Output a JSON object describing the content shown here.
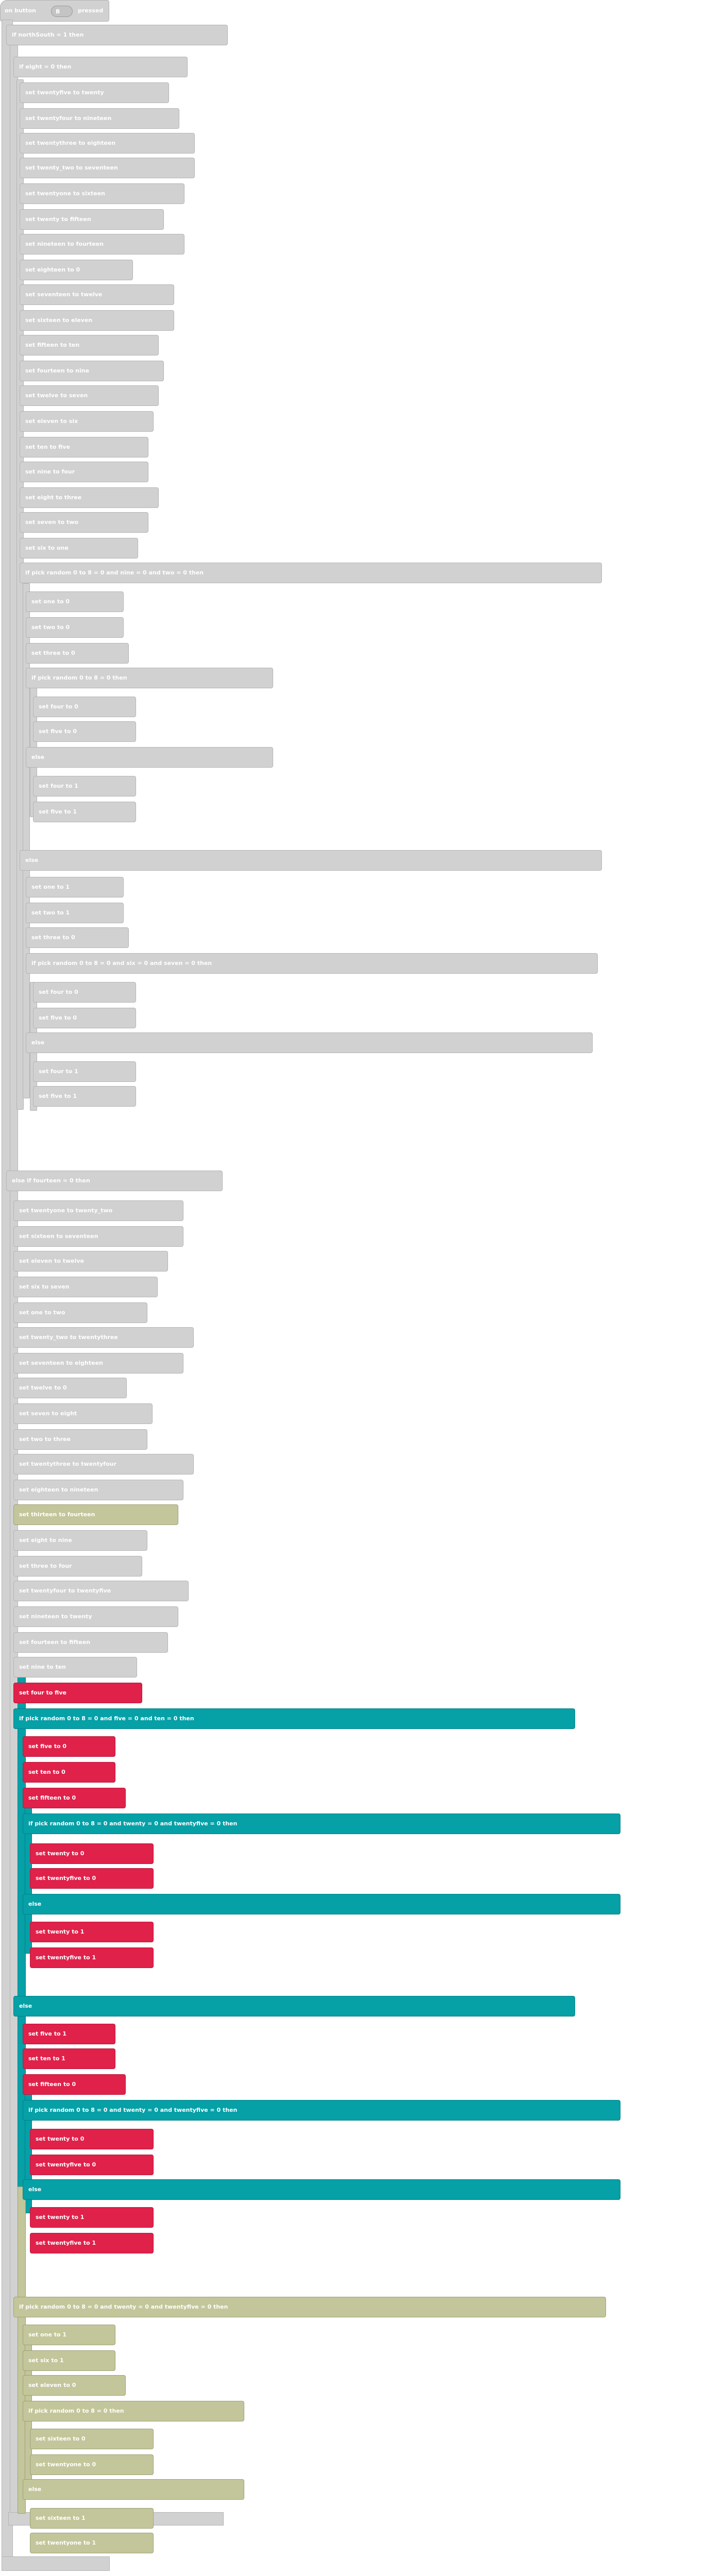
{
  "event": {
    "label": "on button",
    "button": "B",
    "action": "pressed"
  },
  "keywords": {
    "if": "if",
    "else": "else",
    "else_if": "else if",
    "then": "then",
    "set": "set",
    "to": "to",
    "and": "and",
    "pick_random": "pick random"
  },
  "blocks": [
    "if northSouth = 1 then",
    "if eight = 0 then",
    "set twentyfive to twenty",
    "set twentyfour to nineteen",
    "set twentythree to eighteen",
    "set twenty_two to seventeen",
    "set twentyone to sixteen",
    "set twenty to fifteen",
    "set nineteen to fourteen",
    "set eighteen to 0",
    "set seventeen to twelve",
    "set sixteen to eleven",
    "set fifteen to ten",
    "set fourteen to nine",
    "set twelve to seven",
    "set eleven to six",
    "set ten to five",
    "set nine to four",
    "set eight to three",
    "set seven to two",
    "set six to one",
    "if pick random 0 to 8 = 0 and nine = 0 and two = 0 then",
    "set one to 0",
    "set two to 0",
    "set three to 0",
    "if pick random 0 to 8 = 0 then",
    "set four to 0",
    "set five to 0",
    "else",
    "set four to 1",
    "set five to 1",
    "else",
    "set one to 1",
    "set two to 1",
    "set three to 0",
    "if pick random 0 to 8 = 0 and six = 0 and seven = 0 then",
    "set four to 0",
    "set five to 0",
    "else",
    "set four to 1",
    "set five to 1",
    "else if fourteen = 0 then",
    "set twentyone to twenty_two",
    "set sixteen to seventeen",
    "set eleven to twelve",
    "set six to seven",
    "set one to two",
    "set twenty_two to twentythree",
    "set seventeen to eighteen",
    "set twelve to 0",
    "set seven to eight",
    "set two to three",
    "set twentythree to twentyfour",
    "set eighteen to nineteen",
    "set thirteen to fourteen",
    "set eight to nine",
    "set three to four",
    "set twentyfour to twentyfive",
    "set nineteen to twenty",
    "set fourteen to fifteen",
    "set nine to ten",
    "set four to five",
    "if pick random 0 to 8 = 0 and five = 0 and ten = 0 then",
    "set five to 0",
    "set ten to 0",
    "set fifteen to 0",
    "if pick random 0 to 8 = 0 and twenty = 0 and twentyfive = 0 then",
    "set twenty to 0",
    "set twentyfive to 0",
    "else",
    "set twenty to 1",
    "set twentyfive to 1",
    "else",
    "set five to 1",
    "set ten to 1",
    "set fifteen to 0",
    "if pick random 0 to 8 = 0 and twenty = 0 and twentyfive = 0 then",
    "set twenty to 0",
    "set twentyfive to 0",
    "else",
    "set twenty to 1",
    "set twentyfive to 1",
    "if pick random 0 to 8 = 0 and twenty = 0 and twentyfive = 0 then",
    "set one to 1",
    "set six to 1",
    "set eleven to 0",
    "if pick random 0 to 8 = 0 then",
    "set sixteen to 0",
    "set twentyone to 0",
    "else",
    "set sixteen to 1",
    "set twentyone to 1"
  ],
  "colors": {
    "gray": "#d1d1d1",
    "red": "#e0214a",
    "teal": "#06a0a7",
    "olive": "#c3c69a",
    "purple": "#7b2fd0"
  }
}
